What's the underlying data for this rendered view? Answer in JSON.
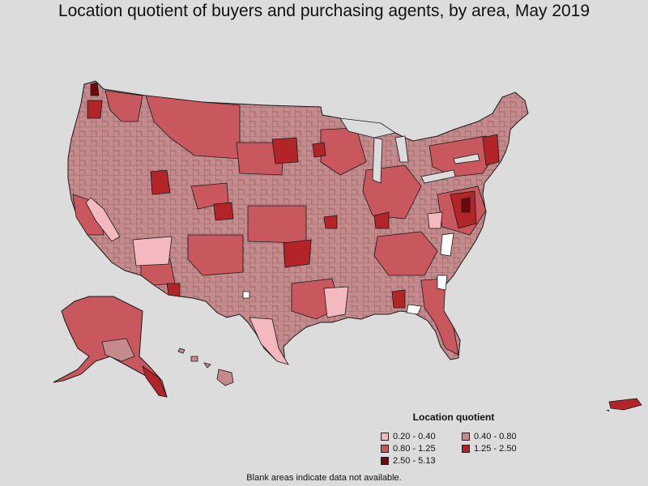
{
  "title": "Location quotient of buyers and purchasing agents, by area, May 2019",
  "legend": {
    "title": "Location quotient",
    "items": [
      {
        "label": "0.20 - 0.40",
        "color": "#f4b8bf"
      },
      {
        "label": "0.40 - 0.80",
        "color": "#c48a8c"
      },
      {
        "label": "0.80 - 1.25",
        "color": "#c9585e"
      },
      {
        "label": "1.25 - 2.50",
        "color": "#b22427"
      },
      {
        "label": "2.50 - 5.13",
        "color": "#6b0a0e"
      }
    ]
  },
  "footnote": "Blank areas indicate data not available.",
  "colors": {
    "background": "#dcdcdc",
    "border": "#1a1a1a",
    "no_data": "#ffffff"
  }
}
